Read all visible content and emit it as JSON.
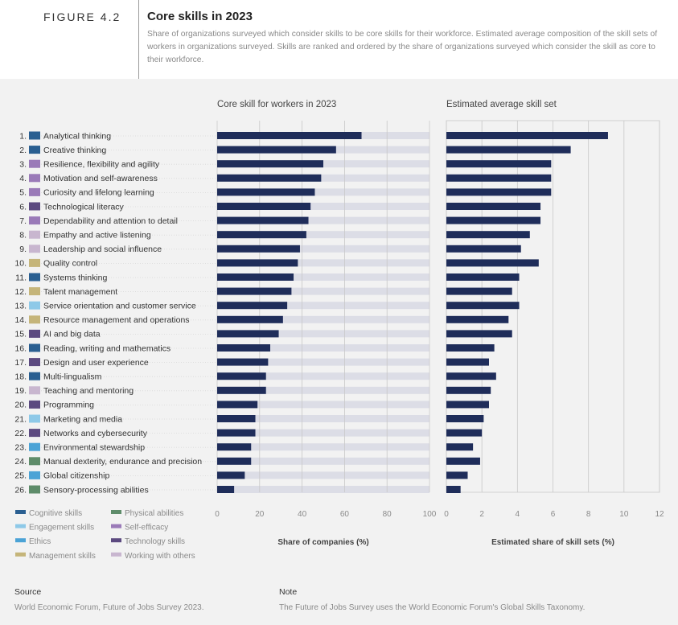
{
  "header": {
    "figure_label": "FIGURE 4.2",
    "title": "Core skills in 2023",
    "subtitle": "Share of organizations surveyed which consider skills to be core skills for their workforce. Estimated average composition of the skill sets of  workers in organizations surveyed. Skills are ranked and ordered by the share of organizations surveyed which consider the skill as core to their workforce."
  },
  "colors": {
    "bar": "#1f2d5a",
    "track": "#dcdde6",
    "grid": "#c8c8c8",
    "Cognitive skills": "#2a5f91",
    "Engagement skills": "#8ec9e8",
    "Ethics": "#4ba3d6",
    "Management skills": "#c5b57a",
    "Physical abilities": "#5e8c6a",
    "Self-efficacy": "#9a7ab8",
    "Technology skills": "#5c4a80",
    "Working with others": "#c8b6cf"
  },
  "legend": [
    "Cognitive skills",
    "Physical abilities",
    "Engagement skills",
    "Self-efficacy",
    "Ethics",
    "Technology skills",
    "Management skills",
    "Working with others"
  ],
  "chart_data": [
    {
      "type": "bar",
      "orientation": "horizontal",
      "title": "Core skill for workers in 2023",
      "xlabel": "Share of companies (%)",
      "xlim": [
        0,
        100
      ],
      "xticks": [
        0,
        20,
        40,
        60,
        80,
        100
      ],
      "grid": true,
      "background_track": true,
      "categories": [
        {
          "rank": "1.",
          "label": "Analytical thinking",
          "group": "Cognitive skills"
        },
        {
          "rank": "2.",
          "label": "Creative thinking",
          "group": "Cognitive skills"
        },
        {
          "rank": "3.",
          "label": "Resilience, flexibility and agility",
          "group": "Self-efficacy"
        },
        {
          "rank": "4.",
          "label": "Motivation and self-awareness",
          "group": "Self-efficacy"
        },
        {
          "rank": "5.",
          "label": "Curiosity and lifelong learning",
          "group": "Self-efficacy"
        },
        {
          "rank": "6.",
          "label": "Technological literacy",
          "group": "Technology skills"
        },
        {
          "rank": "7.",
          "label": "Dependability and attention to detail",
          "group": "Self-efficacy"
        },
        {
          "rank": "8.",
          "label": "Empathy and active listening",
          "group": "Working with others"
        },
        {
          "rank": "9.",
          "label": "Leadership and social influence",
          "group": "Working with others"
        },
        {
          "rank": "10.",
          "label": "Quality control",
          "group": "Management skills"
        },
        {
          "rank": "11.",
          "label": "Systems thinking",
          "group": "Cognitive skills"
        },
        {
          "rank": "12.",
          "label": "Talent management",
          "group": "Management skills"
        },
        {
          "rank": "13.",
          "label": "Service orientation and customer service",
          "group": "Engagement skills"
        },
        {
          "rank": "14.",
          "label": "Resource management and operations",
          "group": "Management skills"
        },
        {
          "rank": "15.",
          "label": "AI and big data",
          "group": "Technology skills"
        },
        {
          "rank": "16.",
          "label": "Reading, writing and mathematics",
          "group": "Cognitive skills"
        },
        {
          "rank": "17.",
          "label": "Design and user experience",
          "group": "Technology skills"
        },
        {
          "rank": "18.",
          "label": "Multi-lingualism",
          "group": "Cognitive skills"
        },
        {
          "rank": "19.",
          "label": "Teaching and mentoring",
          "group": "Working with others"
        },
        {
          "rank": "20.",
          "label": "Programming",
          "group": "Technology skills"
        },
        {
          "rank": "21.",
          "label": "Marketing and media",
          "group": "Engagement skills"
        },
        {
          "rank": "22.",
          "label": "Networks and cybersecurity",
          "group": "Technology skills"
        },
        {
          "rank": "23.",
          "label": "Environmental stewardship",
          "group": "Ethics"
        },
        {
          "rank": "24.",
          "label": "Manual dexterity, endurance and precision",
          "group": "Physical abilities"
        },
        {
          "rank": "25.",
          "label": "Global citizenship",
          "group": "Ethics"
        },
        {
          "rank": "26.",
          "label": "Sensory-processing abilities",
          "group": "Physical abilities"
        }
      ],
      "values": [
        68,
        56,
        50,
        49,
        46,
        44,
        43,
        42,
        39,
        38,
        36,
        35,
        33,
        31,
        29,
        25,
        24,
        23,
        23,
        19,
        18,
        18,
        16,
        16,
        13,
        8
      ]
    },
    {
      "type": "bar",
      "orientation": "horizontal",
      "title": "Estimated average skill set",
      "xlabel": "Estimated share of skill sets (%)",
      "xlim": [
        0,
        12
      ],
      "xticks": [
        0,
        2,
        4,
        6,
        8,
        10,
        12
      ],
      "grid": true,
      "values": [
        9.1,
        7.0,
        5.9,
        5.9,
        5.9,
        5.3,
        5.3,
        4.7,
        4.2,
        5.2,
        4.1,
        3.7,
        4.1,
        3.5,
        3.7,
        2.7,
        2.4,
        2.8,
        2.5,
        2.4,
        2.1,
        2.0,
        1.5,
        1.9,
        1.2,
        0.8
      ]
    }
  ],
  "footer": {
    "source_heading": "Source",
    "source_text": "World Economic Forum, Future of Jobs Survey 2023.",
    "note_heading": "Note",
    "note_text": "The Future of Jobs Survey uses the World Economic Forum's Global Skills Taxonomy."
  }
}
